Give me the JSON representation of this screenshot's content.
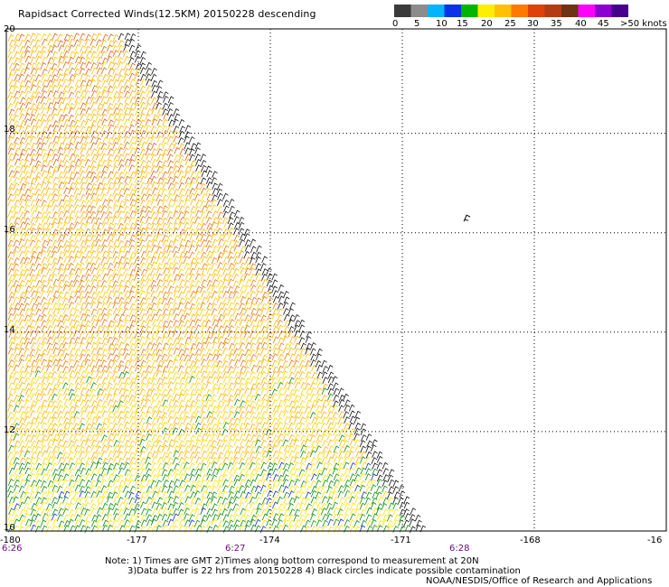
{
  "title": "Rapidsact Corrected Winds(12.5KM) 20150228 descending",
  "colorbar": {
    "colors": [
      "#3a3a3a",
      "#8c8c8c",
      "#00b4ff",
      "#0a32e6",
      "#00b400",
      "#ffee00",
      "#ffc000",
      "#ff7800",
      "#e0400a",
      "#b43c14",
      "#6e3214",
      "#ff00ff",
      "#8c00d2",
      "#46008c"
    ],
    "labels": [
      "0",
      "5",
      "10",
      "15",
      "20",
      "25",
      "30",
      "35",
      "40",
      "45",
      ">50 knots"
    ]
  },
  "axes": {
    "lat_labels": [
      "20",
      "18",
      "16",
      "14",
      "12",
      "10"
    ],
    "lon_labels": [
      "-180",
      "-177",
      "-174",
      "-171",
      "-168",
      "-16"
    ],
    "time_labels": [
      "6:26",
      "6:27",
      "6:28"
    ]
  },
  "notes": [
    "Note: 1) Times are GMT 2)Times along bottom correspond to measurement at 20N",
    "3)Data buffer is 22 hrs from 20150228 4) Black circles indicate possible contamination",
    "NOAA/NESDIS/Office of Research and Applications"
  ],
  "map": {
    "lon_range": [
      -180,
      -165
    ],
    "lat_range": [
      10,
      20.1
    ],
    "swath_edge_lon_at_20N": -177.2,
    "swath_edge_lon_at_10N": -170.5,
    "swath_orientation": "diagonal edge from upper-left to lower-right",
    "wind_color_pattern": "orange at upper-left, yellow in the middle, green and blue in the lower part",
    "contamination_marker": "black wind barb near 16.3N, -169.6"
  }
}
